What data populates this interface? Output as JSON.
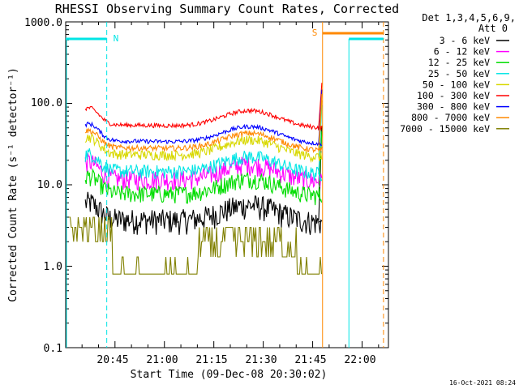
{
  "chart_data": {
    "type": "line",
    "title": "RHESSI Observing Summary Count Rates, Corrected",
    "xlabel": "Start Time (09-Dec-08 20:30:02)",
    "ylabel": "Corrected Count Rate (s⁻¹ detector⁻¹)",
    "y_scale": "log",
    "ylim": [
      0.1,
      1000
    ],
    "xlim": [
      "20:30:02",
      "22:08:00"
    ],
    "x_ticks": [
      "20:45",
      "21:00",
      "21:15",
      "21:30",
      "21:45",
      "22:00"
    ],
    "y_ticks": [
      "0.1",
      "1.0",
      "10.0",
      "100.0",
      "1000.0"
    ],
    "legend": {
      "placement": "top-right",
      "header": [
        "Det 1,3,4,5,6,9,",
        "Att 0"
      ]
    },
    "series": [
      {
        "name": "3 - 6 keV",
        "color": "#000000",
        "base": 3.8
      },
      {
        "name": "6 - 12 keV",
        "color": "#ff00ff",
        "base": 12
      },
      {
        "name": "12 - 25 keV",
        "color": "#00dd00",
        "base": 8
      },
      {
        "name": "25 - 50 keV",
        "color": "#00e5e5",
        "base": 15
      },
      {
        "name": "50 - 100 keV",
        "color": "#d8d800",
        "base": 24
      },
      {
        "name": "100 - 300 keV",
        "color": "#ff0000",
        "base": 55
      },
      {
        "name": "300 - 800 keV",
        "color": "#0000ff",
        "base": 35
      },
      {
        "name": "800 - 7000 keV",
        "color": "#ff8800",
        "base": 29
      },
      {
        "name": "7000 - 15000 keV",
        "color": "#808000",
        "base": 0.8
      }
    ],
    "annotations": {
      "night_label": "N",
      "saa_label": "S",
      "night_start": "20:30:02",
      "night_end": "20:42:30",
      "saa_start": "21:48:00",
      "saa_end": "22:06:30",
      "second_night_start": "21:56:00"
    },
    "colors": {
      "night": "#00e5e5",
      "saa": "#ff8800"
    }
  },
  "footer": {
    "timestamp": "16-Oct-2021 08:24"
  }
}
